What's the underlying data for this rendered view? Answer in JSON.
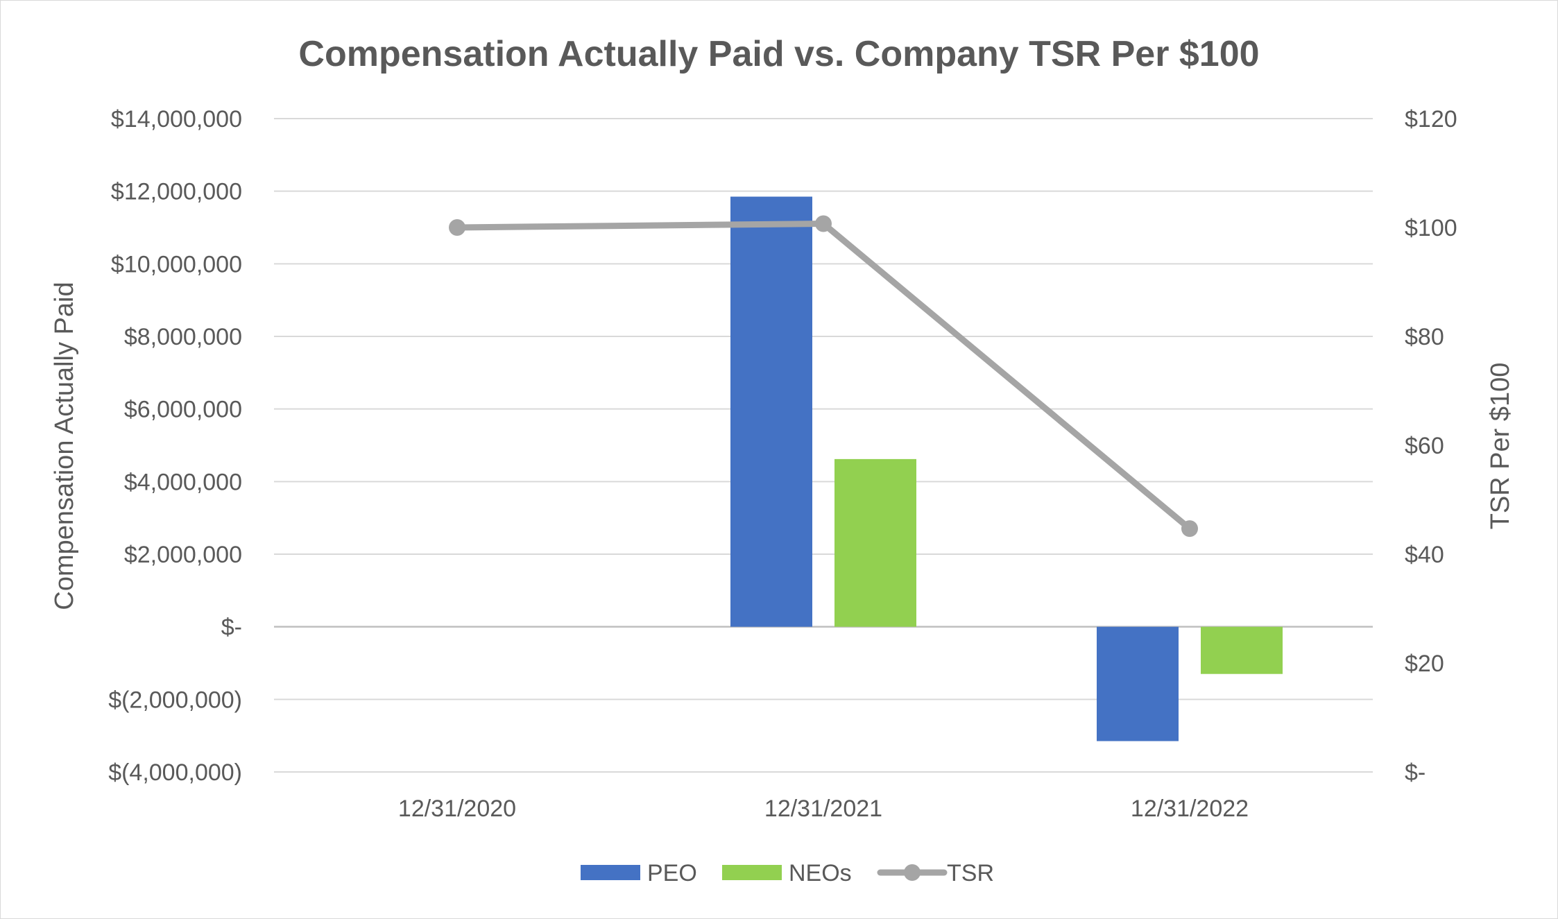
{
  "chart_data": {
    "type": "bar",
    "title": "Compensation Actually Paid vs. Company TSR Per $100",
    "categories": [
      "12/31/2020",
      "12/31/2021",
      "12/31/2022"
    ],
    "y_left": {
      "label": "Compensation Actually Paid",
      "range": [
        -4000000,
        14000000
      ],
      "tick_values": [
        -4000000,
        -2000000,
        0,
        2000000,
        4000000,
        6000000,
        8000000,
        10000000,
        12000000,
        14000000
      ],
      "tick_labels": [
        "$(4,000,000)",
        "$(2,000,000)",
        "$-",
        "$2,000,000",
        "$4,000,000",
        "$6,000,000",
        "$8,000,000",
        "$10,000,000",
        "$12,000,000",
        "$14,000,000"
      ]
    },
    "y_right": {
      "label": "TSR Per $100",
      "range": [
        0,
        120
      ],
      "tick_values": [
        0,
        20,
        40,
        60,
        80,
        100,
        120
      ],
      "tick_labels": [
        "$-",
        "$20",
        "$40",
        "$60",
        "$80",
        "$100",
        "$120"
      ]
    },
    "series": [
      {
        "name": "PEO",
        "kind": "bar",
        "axis": "left",
        "color": "#4472C4",
        "values": [
          null,
          11850000,
          -3150000
        ]
      },
      {
        "name": "NEOs",
        "kind": "bar",
        "axis": "left",
        "color": "#92D050",
        "values": [
          null,
          4620000,
          -1300000
        ]
      },
      {
        "name": "TSR",
        "kind": "line",
        "axis": "right",
        "color": "#A5A5A5",
        "values": [
          100,
          100.7,
          44.7
        ]
      }
    ],
    "grid": true,
    "legend_position": "bottom"
  }
}
